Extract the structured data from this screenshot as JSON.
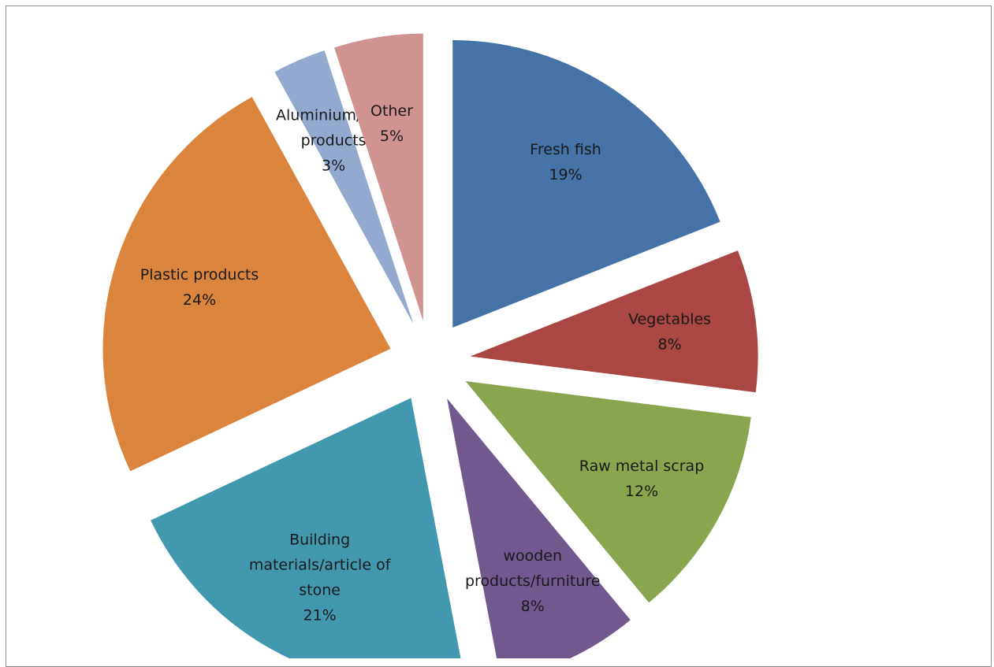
{
  "chart_data": {
    "type": "pie",
    "exploded": true,
    "legend": "none",
    "slices": [
      {
        "label": "Fresh fish",
        "lines": [
          "Fresh fish",
          "19%"
        ],
        "value": 19,
        "color": "#4572A7"
      },
      {
        "label": "Vegetables",
        "lines": [
          "Vegetables",
          "8%"
        ],
        "value": 8,
        "color": "#AA4643"
      },
      {
        "label": "Raw metal scrap",
        "lines": [
          "Raw metal scrap",
          "12%"
        ],
        "value": 12,
        "color": "#89A54E"
      },
      {
        "label": "wooden products/furniture",
        "lines": [
          "wooden",
          "products/furniture",
          "8%"
        ],
        "value": 8,
        "color": "#71588F"
      },
      {
        "label": "Building materials/article of stone",
        "lines": [
          "Building",
          "materials/article of",
          "stone",
          "21%"
        ],
        "value": 21,
        "color": "#4198AF"
      },
      {
        "label": "Plastic products",
        "lines": [
          "Plastic products",
          "24%"
        ],
        "value": 24,
        "color": "#DB843D"
      },
      {
        "label": "Aluminium/PVC products",
        "lines": [
          "Aluminium/PVC",
          "products",
          "3%"
        ],
        "value": 3,
        "color": "#93A9CF"
      },
      {
        "label": "Other",
        "lines": [
          "Other",
          "5%"
        ],
        "value": 5,
        "color": "#D19392"
      }
    ]
  }
}
